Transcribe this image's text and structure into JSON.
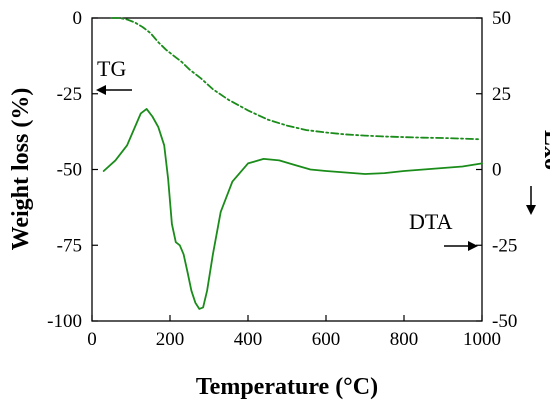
{
  "chart_data": {
    "type": "line",
    "xlabel": "Temperature (°C)",
    "ylabel_left": "Weight loss (%)",
    "ylabel_right": "Exo",
    "xlim": [
      0,
      1000
    ],
    "ylim_left": [
      -100,
      0
    ],
    "ylim_right": [
      -50,
      50
    ],
    "x_ticks": [
      "0",
      "200",
      "400",
      "600",
      "800",
      "1000"
    ],
    "y_left_ticks": [
      "0",
      "-25",
      "-50",
      "-75",
      "-100"
    ],
    "y_right_ticks": [
      "50",
      "25",
      "0",
      "-25",
      "-50"
    ],
    "grid": false,
    "line_color": "#1a8c1a",
    "annotations": {
      "tg": "TG",
      "dta": "DTA"
    },
    "series": [
      {
        "name": "TG",
        "axis": "left",
        "style": "dashdot",
        "x": [
          50,
          70,
          90,
          110,
          130,
          150,
          170,
          190,
          210,
          230,
          250,
          280,
          310,
          350,
          400,
          450,
          500,
          550,
          600,
          650,
          700,
          750,
          800,
          850,
          900,
          950,
          990
        ],
        "y": [
          0,
          0,
          -0.5,
          -1.5,
          -3,
          -5,
          -8,
          -10.5,
          -12.5,
          -14.5,
          -17,
          -20,
          -23.5,
          -27,
          -30.5,
          -33.5,
          -35.5,
          -37,
          -37.8,
          -38.4,
          -38.8,
          -39.1,
          -39.3,
          -39.5,
          -39.6,
          -39.8,
          -40
        ]
      },
      {
        "name": "DTA",
        "axis": "right",
        "style": "solid",
        "x": [
          30,
          60,
          90,
          110,
          125,
          140,
          155,
          170,
          185,
          195,
          205,
          215,
          225,
          235,
          245,
          255,
          265,
          275,
          285,
          295,
          310,
          330,
          360,
          400,
          440,
          480,
          520,
          560,
          600,
          650,
          700,
          750,
          800,
          850,
          900,
          950,
          1000
        ],
        "y": [
          -0.5,
          3,
          8,
          14,
          18.5,
          20,
          17.5,
          14,
          8,
          -3,
          -18,
          -24,
          -25,
          -28,
          -34,
          -40,
          -44,
          -46,
          -45.5,
          -40,
          -28,
          -14,
          -4,
          2,
          3.5,
          3,
          1.5,
          0,
          -0.5,
          -1,
          -1.5,
          -1.2,
          -0.5,
          0,
          0.5,
          1,
          2
        ]
      }
    ]
  }
}
